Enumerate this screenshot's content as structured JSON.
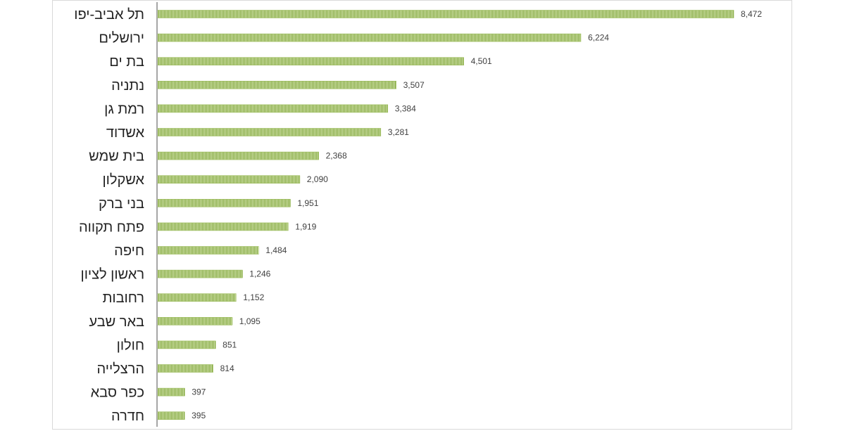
{
  "chart_data": {
    "type": "bar",
    "orientation": "horizontal",
    "categories": [
      "תל אביב-יפו",
      "ירושלים",
      "בת ים",
      "נתניה",
      "רמת גן",
      "אשדוד",
      "בית שמש",
      "אשקלון",
      "בני ברק",
      "פתח תקווה",
      "חיפה",
      "ראשון לציון",
      "רחובות",
      "באר שבע",
      "חולון",
      "הרצלייה",
      "כפר סבא",
      "חדרה"
    ],
    "values": [
      8472,
      6224,
      4501,
      3507,
      3384,
      3281,
      2368,
      2090,
      1951,
      1919,
      1484,
      1246,
      1152,
      1095,
      851,
      814,
      397,
      395
    ],
    "value_labels": [
      "8,472",
      "6,224",
      "4,501",
      "3,507",
      "3,384",
      "3,281",
      "2,368",
      "2,090",
      "1,951",
      "1,919",
      "1,484",
      "1,246",
      "1,152",
      "1,095",
      "851",
      "814",
      "397",
      "395"
    ],
    "bar_color": "#9bbb59",
    "bar_pattern": "vertical-stripes",
    "title": "",
    "xlabel": "",
    "ylabel": "",
    "grid": false,
    "legend": "none"
  }
}
